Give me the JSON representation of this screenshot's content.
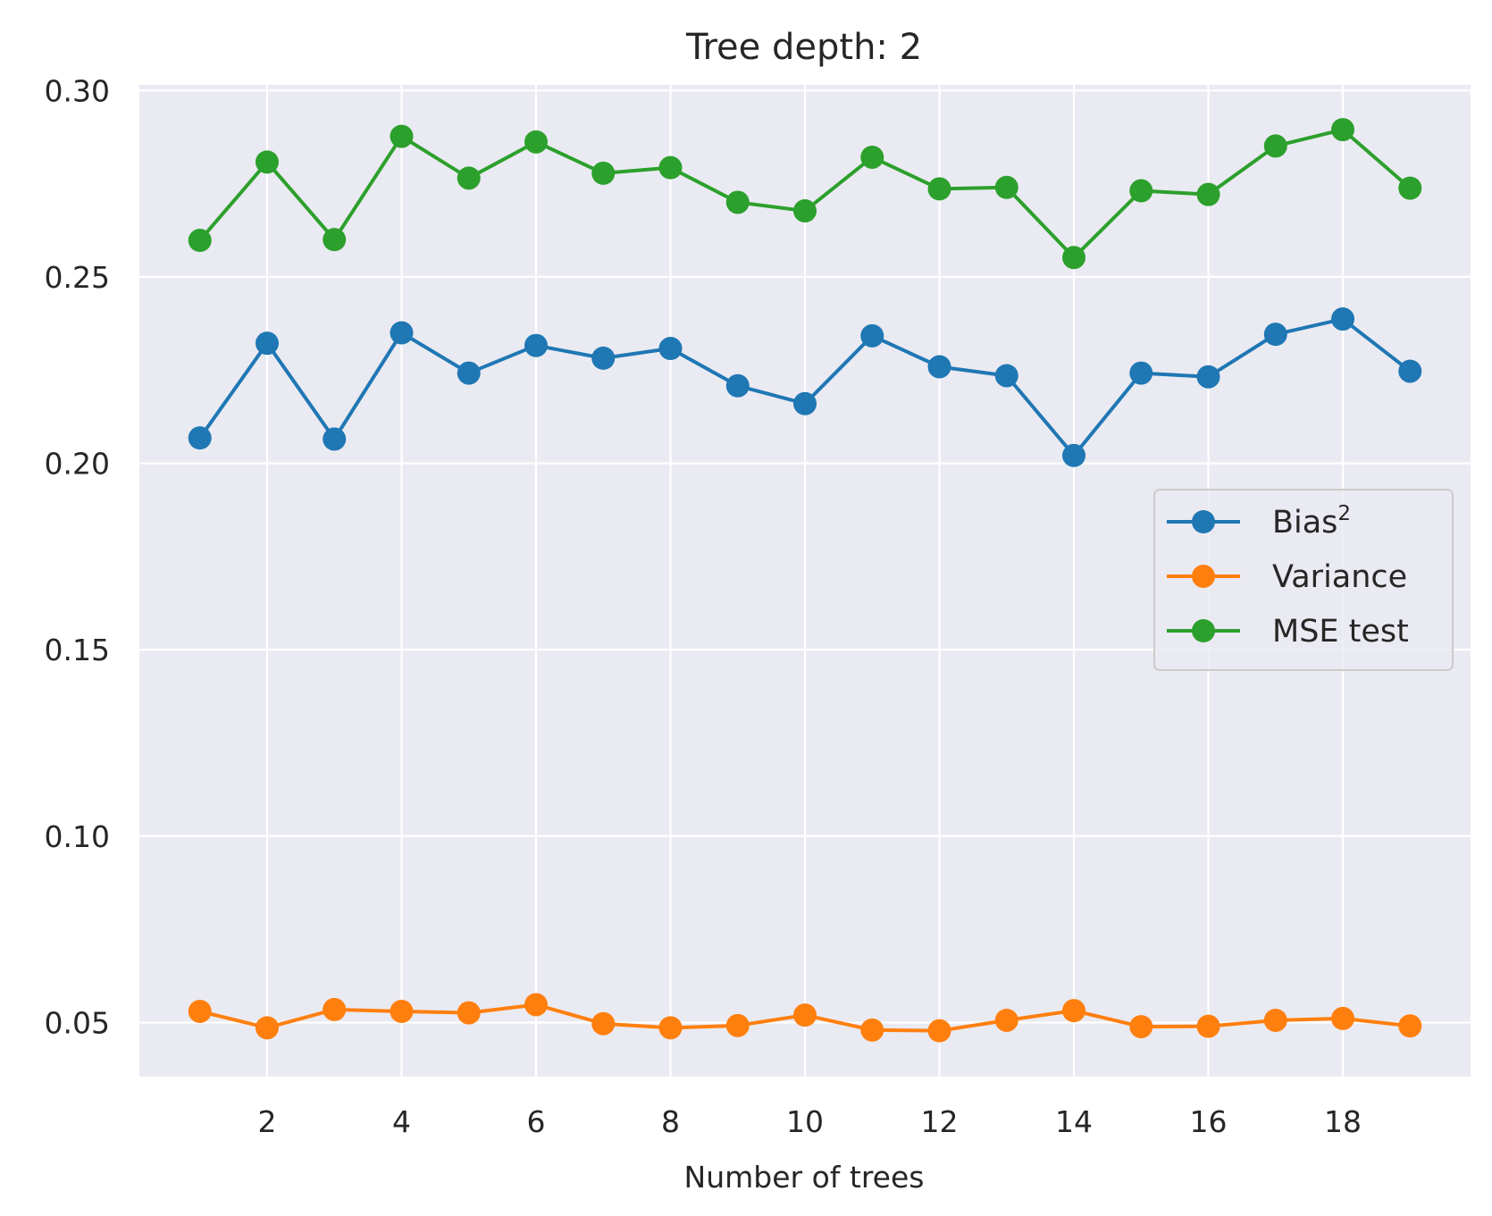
{
  "chart_data": {
    "type": "line",
    "title": "Tree depth: 2",
    "xlabel": "Number of trees",
    "ylabel": "",
    "x": [
      1,
      2,
      3,
      4,
      5,
      6,
      7,
      8,
      9,
      10,
      11,
      12,
      13,
      14,
      15,
      16,
      17,
      18,
      19
    ],
    "xlim": [
      0.1,
      19.9
    ],
    "ylim": [
      0.0355,
      0.3015
    ],
    "xticks": [
      2,
      4,
      6,
      8,
      10,
      12,
      14,
      16,
      18
    ],
    "xtick_labels": [
      "2",
      "4",
      "6",
      "8",
      "10",
      "12",
      "14",
      "16",
      "18"
    ],
    "yticks": [
      0.05,
      0.1,
      0.15,
      0.2,
      0.25,
      0.3
    ],
    "ytick_labels": [
      "0.05",
      "0.10",
      "0.15",
      "0.20",
      "0.25",
      "0.30"
    ],
    "grid": true,
    "legend_position": "center-right",
    "background": "#eaeaf2",
    "series": [
      {
        "name": "Bias",
        "name_superscript": "2",
        "color": "#1f77b4",
        "values": [
          0.2068,
          0.2322,
          0.2065,
          0.235,
          0.2242,
          0.2316,
          0.2282,
          0.2308,
          0.2208,
          0.216,
          0.2342,
          0.2259,
          0.2235,
          0.2021,
          0.2242,
          0.2232,
          0.2346,
          0.2387,
          0.2247
        ]
      },
      {
        "name": "Variance",
        "color": "#ff7f0e",
        "values": [
          0.053,
          0.0486,
          0.0535,
          0.053,
          0.0526,
          0.0548,
          0.0497,
          0.0486,
          0.0492,
          0.052,
          0.048,
          0.0478,
          0.0506,
          0.0532,
          0.0489,
          0.049,
          0.0506,
          0.0511,
          0.0491
        ]
      },
      {
        "name": "MSE test",
        "color": "#2ca02c",
        "values": [
          0.2598,
          0.2808,
          0.26,
          0.2877,
          0.2765,
          0.2862,
          0.2778,
          0.2793,
          0.27,
          0.2677,
          0.2821,
          0.2736,
          0.274,
          0.2552,
          0.2731,
          0.2721,
          0.2851,
          0.2895,
          0.2738
        ]
      }
    ]
  }
}
